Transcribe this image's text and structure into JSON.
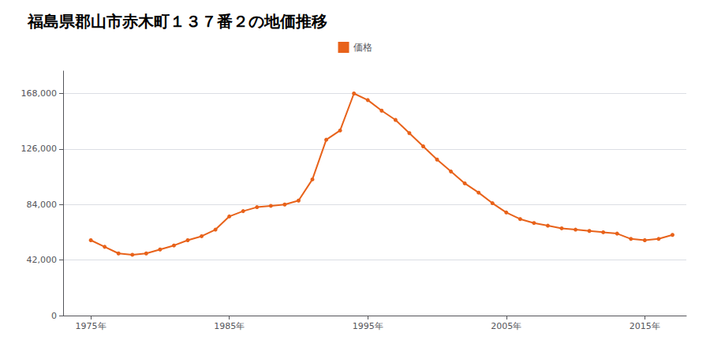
{
  "chart_data": {
    "type": "line",
    "title": "福島県郡山市赤木町１３７番２の地価推移",
    "x": [
      1975,
      1976,
      1977,
      1978,
      1979,
      1980,
      1981,
      1982,
      1983,
      1984,
      1985,
      1986,
      1987,
      1988,
      1989,
      1990,
      1991,
      1992,
      1993,
      1994,
      1995,
      1996,
      1997,
      1998,
      1999,
      2000,
      2001,
      2002,
      2003,
      2004,
      2005,
      2006,
      2007,
      2008,
      2009,
      2010,
      2011,
      2012,
      2013,
      2014,
      2015,
      2016,
      2017
    ],
    "series": [
      {
        "name": "価格",
        "color": "#E8621A",
        "marker": "circle",
        "values": [
          57000,
          52000,
          47000,
          46000,
          47000,
          50000,
          53000,
          57000,
          60000,
          65000,
          75000,
          79000,
          82000,
          83000,
          84000,
          87000,
          103000,
          133000,
          140000,
          168000,
          163000,
          155000,
          148000,
          138000,
          128000,
          118000,
          109000,
          100000,
          93000,
          85000,
          78000,
          73000,
          70000,
          68000,
          66000,
          65000,
          64000,
          63000,
          62000,
          58000,
          57000,
          58000,
          61000
        ]
      }
    ],
    "xlim": [
      1973,
      2018
    ],
    "xticks": [
      {
        "value": 1975,
        "label": "1975年"
      },
      {
        "value": 1985,
        "label": "1985年"
      },
      {
        "value": 1995,
        "label": "1995年"
      },
      {
        "value": 2005,
        "label": "2005年"
      },
      {
        "value": 2015,
        "label": "2015年"
      }
    ],
    "ylim": [
      0,
      185000
    ],
    "yticks": [
      0,
      {
        "value": 42000,
        "label": "42,000"
      },
      {
        "value": 84000,
        "label": "84,000"
      },
      {
        "value": 126000,
        "label": "126,000"
      },
      {
        "value": 168000,
        "label": "168,000"
      }
    ],
    "grid": true,
    "legend": "top"
  }
}
